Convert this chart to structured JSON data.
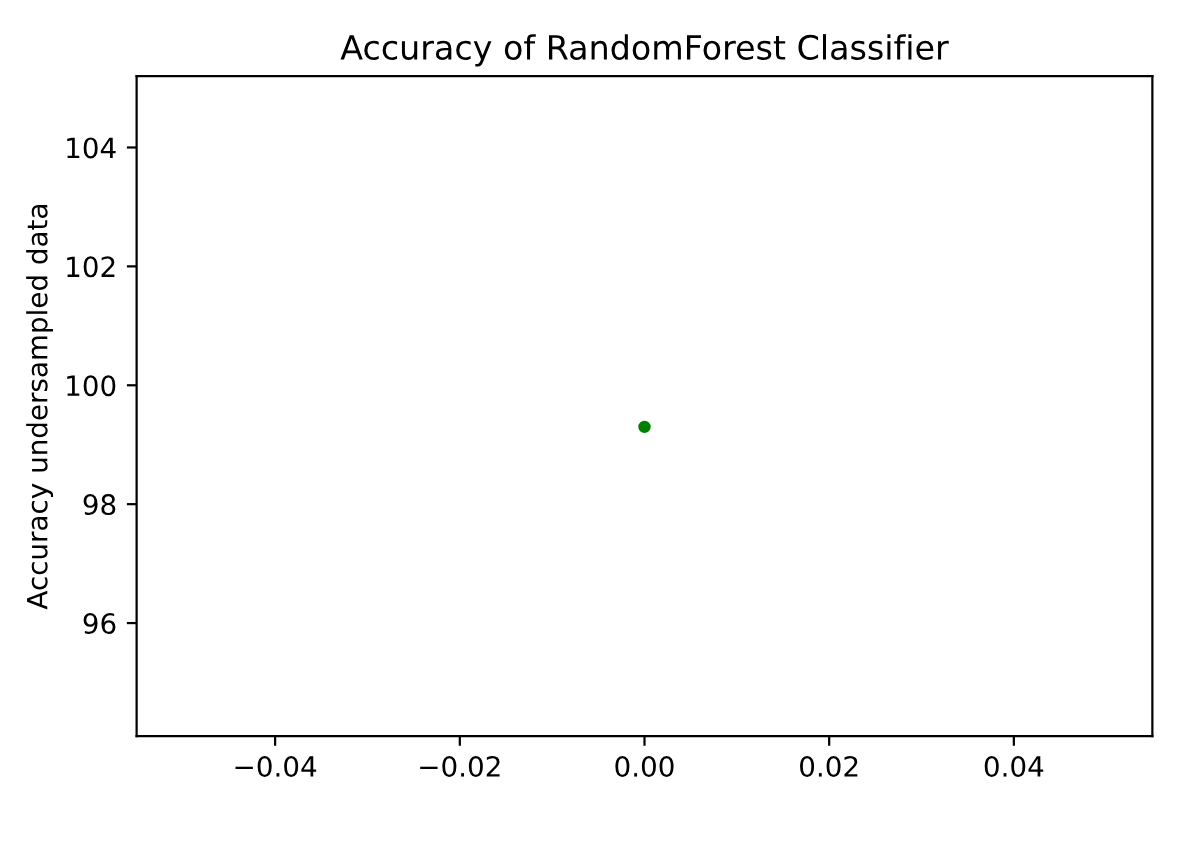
{
  "chart_data": {
    "type": "scatter",
    "title": "Accuracy of RandomForest Classifier",
    "ylabel": "Accuracy undersampled data",
    "x": [
      0
    ],
    "series": [
      {
        "color": "#008000",
        "values": [
          99.3
        ]
      }
    ],
    "marker": "circle",
    "xlim": [
      -0.055,
      0.055
    ],
    "xticks": [
      {
        "value": -0.04,
        "label": "−0.04"
      },
      {
        "value": -0.02,
        "label": "−0.02"
      },
      {
        "value": 0,
        "label": "0.00"
      },
      {
        "value": 0.02,
        "label": "0.02"
      },
      {
        "value": 0.04,
        "label": "0.04"
      }
    ],
    "ylim": [
      94.1,
      105.2
    ],
    "yticks": [
      96,
      98,
      100,
      102,
      104
    ]
  }
}
